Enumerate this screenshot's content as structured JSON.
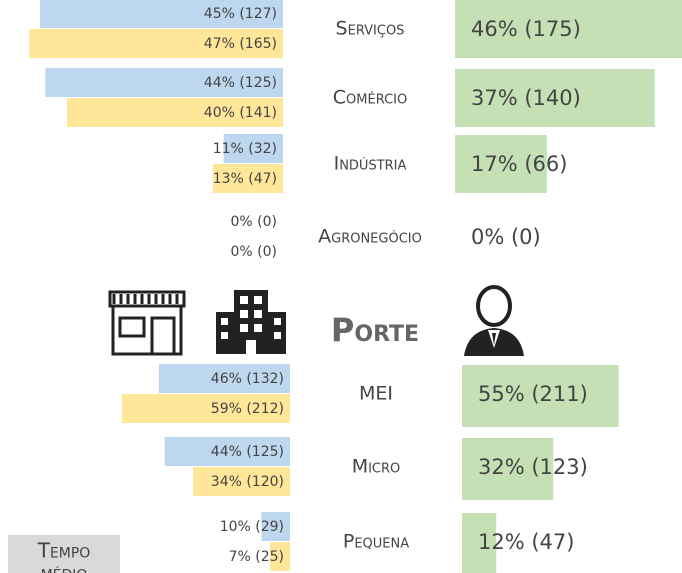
{
  "chart_data": [
    {
      "type": "bar",
      "categories": [
        "Serviços",
        "Comércio",
        "Indústria",
        "Agronegócio"
      ],
      "series": [
        {
          "color": "#bdd7ee",
          "values": [
            45,
            44,
            11,
            0
          ],
          "value_labels": [
            "45% (127)",
            "44% (125)",
            "11% (32)",
            "0% (0)"
          ]
        },
        {
          "color": "#ffe699",
          "values": [
            47,
            40,
            13,
            0
          ],
          "value_labels": [
            "47% (165)",
            "40% (141)",
            "13% (47)",
            "0% (0)"
          ]
        },
        {
          "color": "#c5e0b4",
          "values": [
            46,
            37,
            17,
            0
          ],
          "value_labels": [
            "46% (175)",
            "37% (140)",
            "17% (66)",
            "0% (0)"
          ]
        }
      ]
    },
    {
      "type": "bar",
      "title": "Porte",
      "categories": [
        "MEI",
        "Micro",
        "Pequena"
      ],
      "series": [
        {
          "color": "#bdd7ee",
          "values": [
            46,
            44,
            10
          ],
          "value_labels": [
            "46% (132)",
            "44% (125)",
            "10% (29)"
          ]
        },
        {
          "color": "#ffe699",
          "values": [
            59,
            34,
            7
          ],
          "value_labels": [
            "59% (212)",
            "34% (120)",
            "7% (25)"
          ]
        },
        {
          "color": "#c5e0b4",
          "values": [
            55,
            32,
            12
          ],
          "value_labels": [
            "55% (211)",
            "32% (123)",
            "12% (47)"
          ]
        }
      ]
    }
  ],
  "footer": {
    "label_line1": "Tempo",
    "label_line2": "médio"
  }
}
